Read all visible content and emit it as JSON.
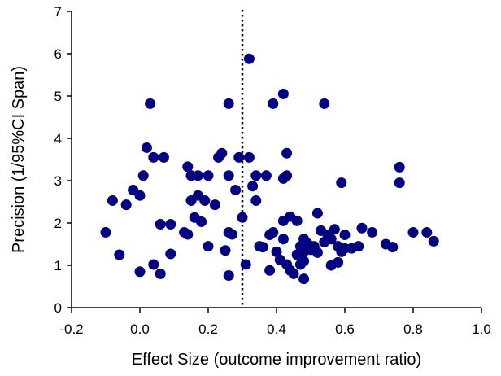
{
  "chart_data": {
    "type": "scatter",
    "xlabel": "Effect Size (outcome improvement ratio)",
    "ylabel": "Precision (1/95%CI Span)",
    "xlim": [
      -0.2,
      1.0
    ],
    "ylim": [
      0,
      7
    ],
    "x_ticks": [
      "-0.2",
      "0.0",
      "0.2",
      "0.4",
      "0.6",
      "0.8",
      "1.0"
    ],
    "y_ticks": [
      "0",
      "1",
      "2",
      "3",
      "4",
      "5",
      "6",
      "7"
    ],
    "reference_line_x": 0.3,
    "grid": false,
    "marker_color": "#000080",
    "points": [
      [
        -0.1,
        1.78
      ],
      [
        -0.08,
        2.53
      ],
      [
        -0.06,
        1.25
      ],
      [
        -0.04,
        2.43
      ],
      [
        -0.02,
        2.78
      ],
      [
        0.0,
        2.65
      ],
      [
        0.01,
        3.12
      ],
      [
        0.0,
        0.85
      ],
      [
        0.02,
        3.78
      ],
      [
        0.03,
        4.82
      ],
      [
        0.04,
        3.55
      ],
      [
        0.04,
        1.02
      ],
      [
        0.06,
        0.8
      ],
      [
        0.06,
        1.97
      ],
      [
        0.07,
        3.55
      ],
      [
        0.09,
        1.97
      ],
      [
        0.09,
        1.27
      ],
      [
        0.13,
        1.78
      ],
      [
        0.14,
        1.73
      ],
      [
        0.14,
        3.33
      ],
      [
        0.15,
        3.12
      ],
      [
        0.15,
        2.53
      ],
      [
        0.16,
        2.13
      ],
      [
        0.17,
        3.12
      ],
      [
        0.17,
        2.65
      ],
      [
        0.18,
        2.03
      ],
      [
        0.19,
        2.53
      ],
      [
        0.2,
        3.12
      ],
      [
        0.2,
        1.45
      ],
      [
        0.22,
        2.43
      ],
      [
        0.23,
        3.55
      ],
      [
        0.24,
        3.65
      ],
      [
        0.25,
        1.35
      ],
      [
        0.26,
        4.82
      ],
      [
        0.26,
        3.12
      ],
      [
        0.26,
        0.76
      ],
      [
        0.26,
        1.78
      ],
      [
        0.27,
        1.73
      ],
      [
        0.28,
        2.78
      ],
      [
        0.29,
        3.55
      ],
      [
        0.3,
        2.13
      ],
      [
        0.31,
        1.02
      ],
      [
        0.32,
        5.88
      ],
      [
        0.32,
        3.55
      ],
      [
        0.33,
        2.87
      ],
      [
        0.34,
        3.12
      ],
      [
        0.34,
        2.53
      ],
      [
        0.35,
        1.45
      ],
      [
        0.36,
        1.43
      ],
      [
        0.37,
        3.12
      ],
      [
        0.38,
        1.72
      ],
      [
        0.38,
        0.88
      ],
      [
        0.39,
        4.82
      ],
      [
        0.39,
        1.78
      ],
      [
        0.4,
        1.32
      ],
      [
        0.41,
        1.13
      ],
      [
        0.42,
        5.05
      ],
      [
        0.42,
        3.05
      ],
      [
        0.42,
        2.05
      ],
      [
        0.42,
        1.62
      ],
      [
        0.43,
        1.02
      ],
      [
        0.43,
        3.65
      ],
      [
        0.43,
        3.12
      ],
      [
        0.44,
        2.15
      ],
      [
        0.44,
        0.88
      ],
      [
        0.45,
        0.8
      ],
      [
        0.46,
        1.25
      ],
      [
        0.46,
        2.05
      ],
      [
        0.47,
        1.45
      ],
      [
        0.47,
        1.02
      ],
      [
        0.48,
        1.62
      ],
      [
        0.48,
        1.32
      ],
      [
        0.48,
        1.1
      ],
      [
        0.48,
        0.68
      ],
      [
        0.49,
        1.52
      ],
      [
        0.5,
        1.37
      ],
      [
        0.51,
        1.45
      ],
      [
        0.52,
        1.3
      ],
      [
        0.52,
        2.23
      ],
      [
        0.53,
        1.82
      ],
      [
        0.54,
        4.82
      ],
      [
        0.54,
        1.55
      ],
      [
        0.55,
        1.72
      ],
      [
        0.56,
        1.0
      ],
      [
        0.56,
        1.62
      ],
      [
        0.57,
        1.85
      ],
      [
        0.58,
        1.45
      ],
      [
        0.58,
        1.07
      ],
      [
        0.59,
        2.95
      ],
      [
        0.59,
        1.32
      ],
      [
        0.6,
        1.72
      ],
      [
        0.6,
        1.4
      ],
      [
        0.62,
        1.4
      ],
      [
        0.64,
        1.45
      ],
      [
        0.65,
        1.88
      ],
      [
        0.68,
        1.78
      ],
      [
        0.72,
        1.5
      ],
      [
        0.74,
        1.43
      ],
      [
        0.76,
        3.32
      ],
      [
        0.76,
        2.95
      ],
      [
        0.8,
        1.78
      ],
      [
        0.84,
        1.78
      ],
      [
        0.86,
        1.57
      ]
    ]
  }
}
